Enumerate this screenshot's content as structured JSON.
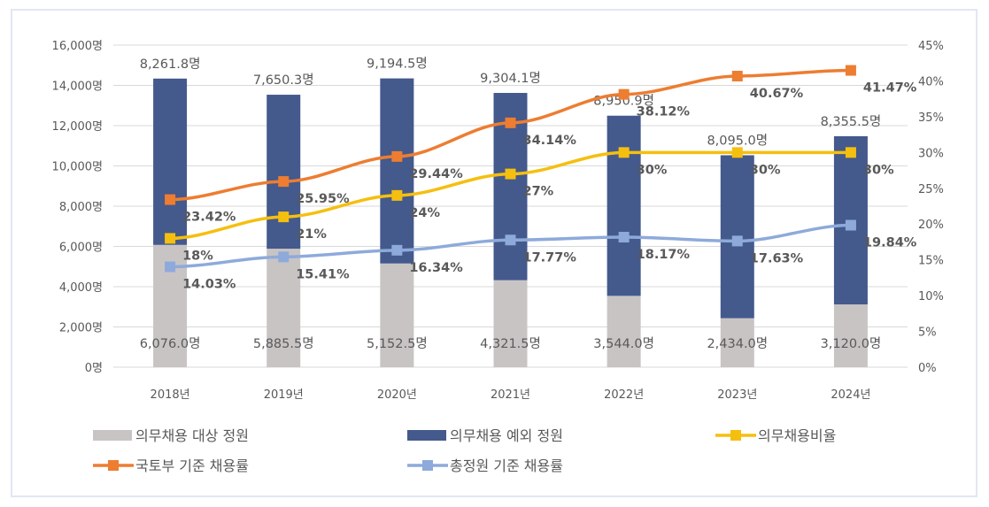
{
  "chart_data": {
    "type": "bar+line",
    "categories": [
      "2018년",
      "2019년",
      "2020년",
      "2021년",
      "2022년",
      "2023년",
      "2024년"
    ],
    "left_axis": {
      "ylim": [
        0,
        16000
      ],
      "ticks": [
        0,
        2000,
        4000,
        6000,
        8000,
        10000,
        12000,
        14000,
        16000
      ],
      "tick_labels": [
        "0명",
        "2,000명",
        "4,000명",
        "6,000명",
        "8,000명",
        "10,000명",
        "12,000명",
        "14,000명",
        "16,000명"
      ]
    },
    "right_axis": {
      "ylim": [
        0,
        45
      ],
      "ticks": [
        0,
        5,
        10,
        15,
        20,
        25,
        30,
        35,
        40,
        45
      ],
      "tick_labels": [
        "0%",
        "5%",
        "10%",
        "15%",
        "20%",
        "25%",
        "30%",
        "35%",
        "40%",
        "45%"
      ]
    },
    "grid": true,
    "legend_position": "bottom",
    "bar_series": [
      {
        "name": "의무채용 대상 정원",
        "color": "#c9c4c4",
        "values": [
          6076.0,
          5885.5,
          5152.5,
          4321.5,
          3544.0,
          2434.0,
          3120.0
        ],
        "labels": [
          "6,076.0명",
          "5,885.5명",
          "5,152.5명",
          "4,321.5명",
          "3,544.0명",
          "2,434.0명",
          "3,120.0명"
        ]
      },
      {
        "name": "의무채용 예외 정원",
        "color": "#44598c",
        "values": [
          8261.8,
          7650.3,
          9194.5,
          9304.1,
          8950.9,
          8095.0,
          8355.5
        ],
        "labels": [
          "8,261.8명",
          "7,650.3명",
          "9,194.5명",
          "9,304.1명",
          "8,950.9명",
          "8,095.0명",
          "8,355.5명"
        ]
      }
    ],
    "line_series": [
      {
        "name": "의무채용비율",
        "color": "#f5bf0f",
        "values": [
          18,
          21,
          24,
          27,
          30,
          30,
          30
        ],
        "labels": [
          "18%",
          "21%",
          "24%",
          "27%",
          "30%",
          "30%",
          "30%"
        ]
      },
      {
        "name": "국토부 기준 채용률",
        "color": "#ed7d31",
        "values": [
          23.42,
          25.95,
          29.44,
          34.14,
          38.12,
          40.67,
          41.47
        ],
        "labels": [
          "23.42%",
          "25.95%",
          "29.44%",
          "34.14%",
          "38.12%",
          "40.67%",
          "41.47%"
        ]
      },
      {
        "name": "총정원 기준 채용률",
        "color": "#8eaadb",
        "values": [
          14.03,
          15.41,
          16.34,
          17.77,
          18.17,
          17.63,
          19.84
        ],
        "labels": [
          "14.03%",
          "15.41%",
          "16.34%",
          "17.77%",
          "18.17%",
          "17.63%",
          "19.84%"
        ]
      }
    ],
    "legend_order": [
      "의무채용 대상 정원",
      "의무채용 예외 정원",
      "의무채용비율",
      "국토부 기준 채용률",
      "총정원 기준 채용률"
    ]
  }
}
